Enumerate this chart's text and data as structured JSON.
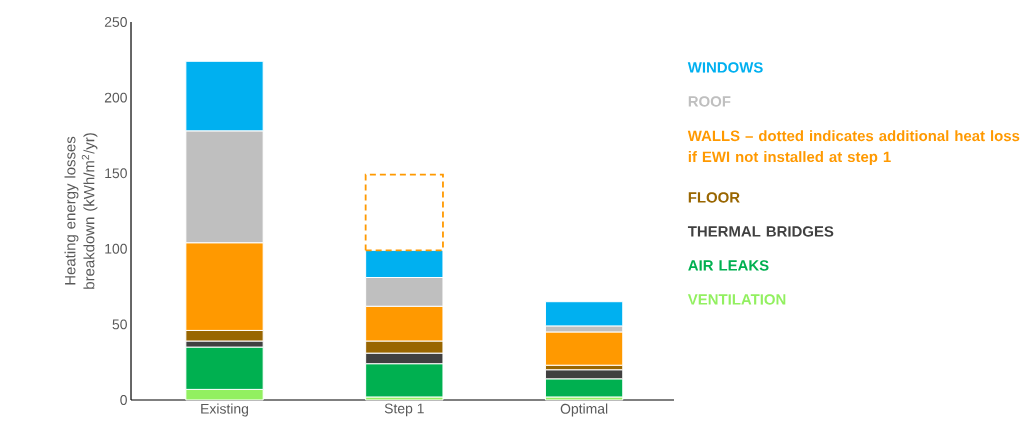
{
  "chart_data": {
    "type": "bar",
    "stacked": true,
    "ylabel": "Heating energy losses breakdown (kWh/m$^{2}$/yr)",
    "categories": [
      "Existing",
      "Step 1",
      "Optimal"
    ],
    "series": [
      {
        "name": "VENTILATION",
        "color": "#92f060",
        "values": [
          7,
          2,
          2
        ]
      },
      {
        "name": "AIR LEAKS",
        "color": "#00b050",
        "values": [
          28,
          22,
          12
        ]
      },
      {
        "name": "THERMAL BRIDGES",
        "color": "#404040",
        "values": [
          4,
          7,
          6
        ]
      },
      {
        "name": "FLOOR",
        "color": "#996600",
        "values": [
          7,
          8,
          3
        ]
      },
      {
        "name": "WALLS – dotted indicates additional heat loss if EWI not installed at step 1",
        "color": "#ff9900",
        "values": [
          58,
          23,
          22
        ]
      },
      {
        "name": "ROOF",
        "color": "#bfbfbf",
        "values": [
          74,
          19,
          4
        ]
      },
      {
        "name": "WINDOWS",
        "color": "#00b0f0",
        "values": [
          46,
          18,
          16
        ]
      },
      {
        "color": "#ff9900",
        "line_style": "dashed",
        "values": [
          null,
          50,
          null
        ]
      }
    ],
    "ylim": [
      0,
      250
    ],
    "yticks": [
      0,
      50,
      100,
      150,
      200,
      250
    ],
    "grid": false,
    "legend": "right"
  }
}
